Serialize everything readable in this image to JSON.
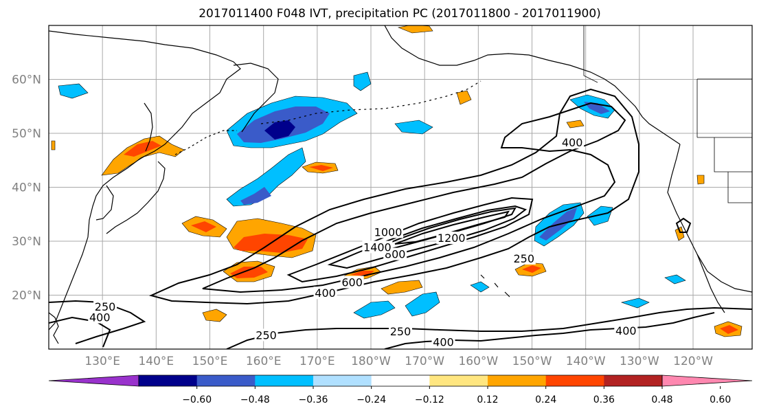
{
  "figure": {
    "title": "2017011400 F048 IVT, precipitation PC (2017011800 - 2017011900)"
  },
  "map": {
    "lat_range_deg_north": [
      10,
      70
    ],
    "lon_range_deg_east": [
      120,
      251
    ],
    "gridlines": true,
    "lat_ticks": [
      {
        "value": 60,
        "label": "60°N"
      },
      {
        "value": 50,
        "label": "50°N"
      },
      {
        "value": 40,
        "label": "40°N"
      },
      {
        "value": 30,
        "label": "30°N"
      },
      {
        "value": 20,
        "label": "20°N"
      }
    ],
    "lon_ticks": [
      {
        "value": 130,
        "label": "130°E"
      },
      {
        "value": 140,
        "label": "140°E"
      },
      {
        "value": 150,
        "label": "150°E"
      },
      {
        "value": 160,
        "label": "160°E"
      },
      {
        "value": 170,
        "label": "170°E"
      },
      {
        "value": 180,
        "label": "180°W"
      },
      {
        "value": 190,
        "label": "170°W"
      },
      {
        "value": 200,
        "label": "160°W"
      },
      {
        "value": 210,
        "label": "150°W"
      },
      {
        "value": 220,
        "label": "140°W"
      },
      {
        "value": 230,
        "label": "130°W"
      },
      {
        "value": 240,
        "label": "120°W"
      }
    ],
    "ivt_contour_labels": [
      {
        "text": "250",
        "lon": 130.5,
        "lat": 17.8
      },
      {
        "text": "400",
        "lon": 129.5,
        "lat": 15.8
      },
      {
        "text": "250",
        "lon": 160.5,
        "lat": 12.5
      },
      {
        "text": "250",
        "lon": 185.5,
        "lat": 13.2
      },
      {
        "text": "400",
        "lon": 193.5,
        "lat": 11.2
      },
      {
        "text": "400",
        "lon": 227.5,
        "lat": 13.3
      },
      {
        "text": "400",
        "lon": 171.5,
        "lat": 20.3
      },
      {
        "text": "600",
        "lon": 176.5,
        "lat": 22.3
      },
      {
        "text": "800",
        "lon": 184.5,
        "lat": 27.5
      },
      {
        "text": "1400",
        "lon": 181.2,
        "lat": 28.8
      },
      {
        "text": "1000",
        "lon": 183.2,
        "lat": 31.6
      },
      {
        "text": "1200",
        "lon": 195.0,
        "lat": 30.5
      },
      {
        "text": "250",
        "lon": 208.5,
        "lat": 26.7
      },
      {
        "text": "400",
        "lon": 217.5,
        "lat": 48.2
      }
    ]
  },
  "colorbar": {
    "colors": [
      "#9932cc",
      "#00008b",
      "#3a5bc9",
      "#00bfff",
      "#b0e0ff",
      "#ffffff",
      "#ffe680",
      "#ffa500",
      "#ff4500",
      "#b22222",
      "#ff88b0"
    ],
    "tick_labels": [
      "-0.60",
      "-0.48",
      "-0.36",
      "-0.24",
      "-0.12",
      "0.12",
      "0.24",
      "0.36",
      "0.48",
      "0.60"
    ]
  },
  "style": {
    "tick_label_color": "#808080",
    "frame_color": "#000000",
    "grid_color": "#a9a9a9"
  }
}
